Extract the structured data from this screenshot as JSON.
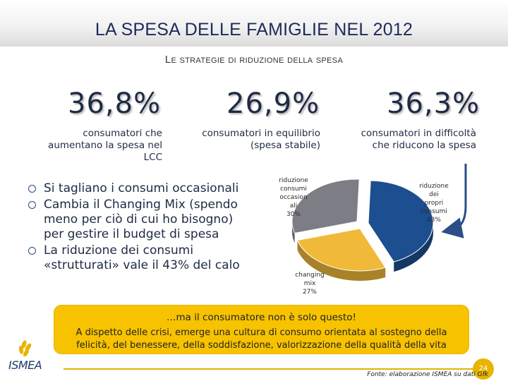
{
  "header": {
    "title": "LA SPESA DELLE FAMIGLIE NEL 2012",
    "subtitle": "Le strategie di riduzione della spesa"
  },
  "stats": [
    {
      "value": "36,8%",
      "desc_lines": [
        "consumatori che",
        "aumentano la spesa nel",
        "LCC"
      ]
    },
    {
      "value": "26,9%",
      "desc_lines": [
        "consumatori in equilibrio",
        "(spesa stabile)"
      ]
    },
    {
      "value": "36,3%",
      "desc_lines": [
        "consumatori in difficoltà",
        "che riducono la spesa"
      ]
    }
  ],
  "bullets": [
    {
      "lines": [
        "Si tagliano i consumi occasionali"
      ]
    },
    {
      "lines": [
        "Cambia il Changing Mix (spendo",
        "meno per ciò di cui ho bisogno)",
        "per gestire il budget di spesa"
      ]
    },
    {
      "lines": [
        "La riduzione dei consumi",
        "«strutturati» vale il 43% del calo"
      ]
    }
  ],
  "chart_data": {
    "type": "pie",
    "title": "",
    "slices": [
      {
        "label": "riduzione dei propri consumi",
        "label_lines": [
          "riduzione",
          "dei",
          "propri",
          "consumi"
        ],
        "value": 43,
        "value_label": "43%",
        "color": "#1d4e8f"
      },
      {
        "label": "changing mix",
        "label_lines": [
          "changing",
          "mix"
        ],
        "value": 27,
        "value_label": "27%",
        "color": "#f0b93a"
      },
      {
        "label": "riduzione consumi occasionali",
        "label_lines": [
          "riduzione",
          "consumi",
          "occasion",
          "ali"
        ],
        "value": 30,
        "value_label": "30%",
        "color": "#7d7d86"
      }
    ]
  },
  "callout": {
    "line1": "…ma il consumatore non è solo questo!",
    "line2a": "A dispetto delle crisi, emerge una cultura di consumo orientata al sostegno della",
    "line2b": "felicità, del benessere, della soddisfazione, valorizzazione della qualità della vita"
  },
  "footer": {
    "source": "Fonte: elaborazione ISMEA su dati Gfk",
    "page_number": "24",
    "logo_text": "ISMEA"
  },
  "colors": {
    "title": "#1f2a5a",
    "accent": "#f7c200",
    "arrow": "#2b4f86"
  }
}
